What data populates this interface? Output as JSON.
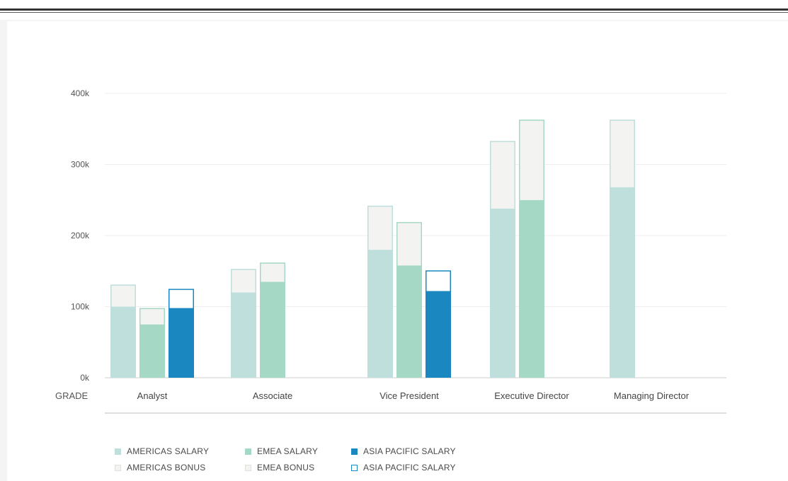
{
  "chart_data": {
    "type": "bar",
    "stacked_groups": true,
    "categories": [
      "Analyst",
      "Associate",
      "Vice President",
      "Executive Director",
      "Managing Director"
    ],
    "category_axis_label": "GRADE",
    "yticks": [
      "0k",
      "100k",
      "200k",
      "300k",
      "400k"
    ],
    "ylim": [
      0,
      400000
    ],
    "grid": true,
    "legend_position": "bottom-left",
    "series": [
      {
        "name": "AMERICAS SALARY",
        "group": "Americas",
        "part": "salary",
        "color": "#bfdfdc",
        "values": [
          100000,
          120000,
          180000,
          238000,
          268000
        ]
      },
      {
        "name": "AMERICAS BONUS",
        "group": "Americas",
        "part": "bonus",
        "color": "#f3f3f1",
        "values": [
          31000,
          33000,
          62000,
          95000,
          95000
        ]
      },
      {
        "name": "EMEA SALARY",
        "group": "EMEA",
        "part": "salary",
        "color": "#a5d9c6",
        "values": [
          75000,
          135000,
          158000,
          250000,
          null
        ]
      },
      {
        "name": "EMEA BONUS",
        "group": "EMEA",
        "part": "bonus",
        "color": "#f3f3f1",
        "values": [
          23000,
          27000,
          61000,
          113000,
          null
        ]
      },
      {
        "name": "ASIA PACIFIC SALARY",
        "group": "Asia Pacific",
        "part": "salary",
        "color": "#1a87c0",
        "values": [
          98000,
          null,
          122000,
          null,
          null
        ]
      },
      {
        "name": "ASIA PACIFIC SALARY",
        "group": "Asia Pacific",
        "part": "bonus",
        "color": "#ffffff",
        "outline": "#1a87c0",
        "values": [
          27000,
          null,
          29000,
          null,
          null
        ]
      }
    ]
  }
}
